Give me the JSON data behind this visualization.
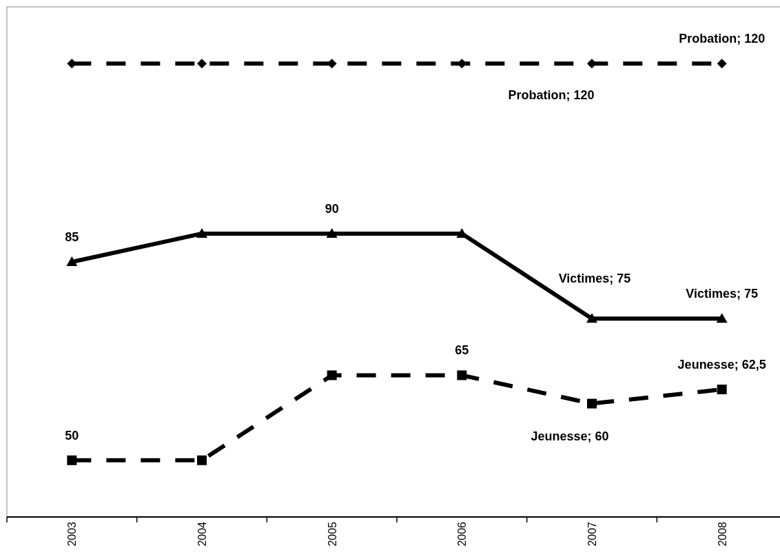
{
  "chart_data": {
    "type": "line",
    "categories": [
      "2003",
      "2004",
      "2005",
      "2006",
      "2007",
      "2008"
    ],
    "ylim": [
      40,
      130
    ],
    "tick_labels": "x",
    "series": [
      {
        "color": "#000000",
        "marker": "diamond",
        "line_style": "dashed",
        "values": [
          120,
          120,
          120,
          120,
          120,
          120
        ],
        "value_labels": [
          null,
          null,
          null,
          null,
          "Probation; 120",
          "Probation; 120"
        ]
      },
      {
        "color": "#000000",
        "marker": "triangle",
        "line_style": "solid",
        "values": [
          85,
          90,
          90,
          90,
          75,
          75
        ],
        "value_labels": [
          "85",
          null,
          "90",
          null,
          "Victimes; 75",
          "Victimes; 75"
        ]
      },
      {
        "color": "#000000",
        "marker": "square",
        "line_style": "dashed",
        "values": [
          50,
          50,
          65,
          65,
          60,
          62.5
        ],
        "value_labels": [
          "50",
          null,
          null,
          "65",
          "Jeunesse; 60",
          "Jeunesse; 62,5"
        ]
      }
    ]
  }
}
